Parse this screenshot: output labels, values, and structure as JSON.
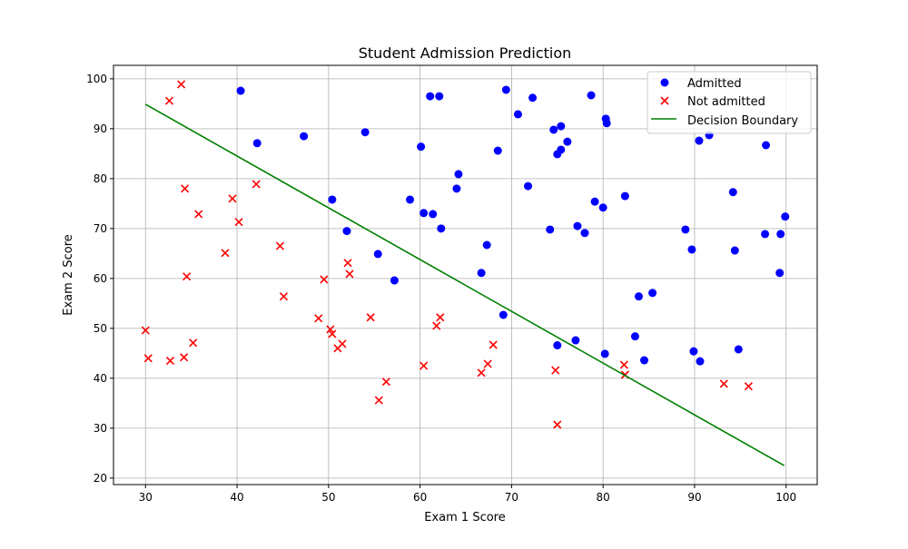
{
  "chart_data": {
    "type": "scatter",
    "title": "Student Admission Prediction",
    "xlabel": "Exam 1 Score",
    "ylabel": "Exam 2 Score",
    "xlim": [
      26.5,
      103.4
    ],
    "ylim": [
      18.7,
      102.7
    ],
    "xticks": [
      30,
      40,
      50,
      60,
      70,
      80,
      90,
      100
    ],
    "yticks": [
      20,
      30,
      40,
      50,
      60,
      70,
      80,
      90,
      100
    ],
    "grid": true,
    "legend_position": "top-right",
    "series": [
      {
        "name": "Admitted",
        "marker": "circle",
        "color": "#0000ff",
        "points": [
          [
            40.4,
            97.6
          ],
          [
            42.2,
            87.1
          ],
          [
            47.3,
            88.5
          ],
          [
            54.0,
            89.3
          ],
          [
            50.4,
            75.8
          ],
          [
            52.0,
            69.5
          ],
          [
            55.4,
            64.9
          ],
          [
            57.2,
            59.6
          ],
          [
            58.9,
            75.8
          ],
          [
            60.1,
            86.4
          ],
          [
            60.4,
            73.1
          ],
          [
            61.1,
            96.5
          ],
          [
            61.4,
            72.9
          ],
          [
            62.1,
            96.5
          ],
          [
            62.3,
            70.0
          ],
          [
            64.0,
            78.0
          ],
          [
            64.2,
            80.9
          ],
          [
            66.7,
            61.1
          ],
          [
            67.3,
            66.7
          ],
          [
            68.5,
            85.6
          ],
          [
            69.1,
            52.7
          ],
          [
            69.4,
            97.8
          ],
          [
            70.7,
            92.9
          ],
          [
            71.8,
            78.5
          ],
          [
            72.3,
            96.2
          ],
          [
            74.2,
            69.8
          ],
          [
            74.6,
            89.8
          ],
          [
            75.0,
            84.9
          ],
          [
            75.0,
            46.6
          ],
          [
            75.4,
            85.8
          ],
          [
            75.4,
            90.5
          ],
          [
            76.1,
            87.4
          ],
          [
            77.0,
            47.6
          ],
          [
            77.2,
            70.5
          ],
          [
            78.0,
            69.1
          ],
          [
            78.7,
            96.7
          ],
          [
            79.1,
            75.4
          ],
          [
            80.0,
            74.2
          ],
          [
            80.2,
            44.9
          ],
          [
            80.3,
            92.0
          ],
          [
            80.4,
            91.1
          ],
          [
            82.4,
            76.5
          ],
          [
            83.5,
            48.4
          ],
          [
            83.9,
            56.4
          ],
          [
            84.5,
            43.6
          ],
          [
            85.4,
            57.1
          ],
          [
            89.0,
            69.8
          ],
          [
            89.7,
            65.8
          ],
          [
            89.9,
            45.4
          ],
          [
            90.5,
            87.6
          ],
          [
            90.6,
            43.4
          ],
          [
            91.6,
            88.7
          ],
          [
            94.2,
            77.3
          ],
          [
            94.4,
            65.6
          ],
          [
            94.8,
            45.8
          ],
          [
            97.8,
            86.7
          ],
          [
            97.7,
            68.9
          ],
          [
            99.4,
            68.9
          ],
          [
            99.3,
            61.1
          ],
          [
            99.9,
            72.4
          ]
        ]
      },
      {
        "name": "Not admitted",
        "marker": "x",
        "color": "#ff0000",
        "points": [
          [
            33.9,
            98.9
          ],
          [
            32.6,
            95.6
          ],
          [
            34.3,
            78.0
          ],
          [
            35.8,
            72.9
          ],
          [
            34.5,
            60.4
          ],
          [
            30.0,
            49.6
          ],
          [
            30.3,
            44.0
          ],
          [
            32.7,
            43.5
          ],
          [
            34.2,
            44.2
          ],
          [
            35.2,
            47.1
          ],
          [
            38.7,
            65.1
          ],
          [
            39.5,
            76.0
          ],
          [
            40.2,
            71.3
          ],
          [
            42.1,
            78.9
          ],
          [
            44.7,
            66.5
          ],
          [
            45.1,
            56.4
          ],
          [
            48.9,
            52.0
          ],
          [
            49.5,
            59.8
          ],
          [
            50.2,
            49.8
          ],
          [
            50.4,
            48.9
          ],
          [
            51.0,
            46.0
          ],
          [
            51.5,
            46.9
          ],
          [
            52.1,
            63.1
          ],
          [
            52.3,
            60.9
          ],
          [
            54.6,
            52.2
          ],
          [
            55.5,
            35.6
          ],
          [
            56.3,
            39.3
          ],
          [
            60.4,
            42.5
          ],
          [
            61.8,
            50.5
          ],
          [
            62.2,
            52.2
          ],
          [
            66.7,
            41.1
          ],
          [
            67.4,
            42.9
          ],
          [
            68.0,
            46.7
          ],
          [
            74.8,
            41.6
          ],
          [
            75.0,
            30.7
          ],
          [
            82.3,
            42.7
          ],
          [
            82.4,
            40.7
          ],
          [
            93.2,
            38.9
          ],
          [
            95.9,
            38.4
          ]
        ]
      },
      {
        "name": "Decision Boundary",
        "type": "line",
        "color": "#008000",
        "points": [
          [
            30.0,
            94.9
          ],
          [
            99.8,
            22.5
          ]
        ]
      }
    ]
  }
}
